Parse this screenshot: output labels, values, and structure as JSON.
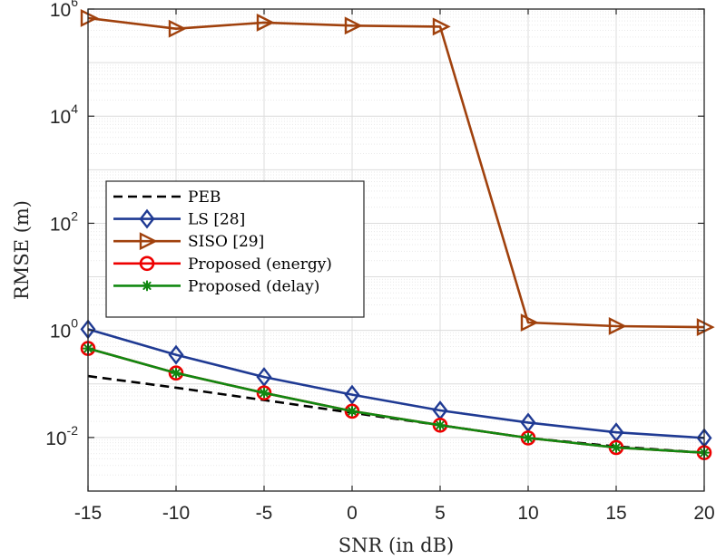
{
  "chart_data": {
    "type": "line",
    "title": "",
    "xlabel": "SNR (in dB)",
    "ylabel": "RMSE (m)",
    "x": [
      -15,
      -10,
      -5,
      0,
      5,
      10,
      15,
      20
    ],
    "xlim": [
      -15,
      20
    ],
    "xticks": [
      -15,
      -10,
      -5,
      0,
      5,
      10,
      15,
      20
    ],
    "yscale": "log",
    "ylim": [
      0.001,
      1000000
    ],
    "yticks": [
      {
        "value": 0.01,
        "base": "10",
        "exp": "-2"
      },
      {
        "value": 1,
        "base": "10",
        "exp": "0"
      },
      {
        "value": 100,
        "base": "10",
        "exp": "2"
      },
      {
        "value": 10000,
        "base": "10",
        "exp": "4"
      },
      {
        "value": 1000000,
        "base": "10",
        "exp": "6"
      }
    ],
    "grid": true,
    "legend_position": "middle-left",
    "series": [
      {
        "name": "PEB",
        "color": "#000000",
        "dash": true,
        "marker": "none",
        "values": [
          0.14,
          0.085,
          0.05,
          0.029,
          0.017,
          0.0098,
          0.0068,
          0.0052
        ]
      },
      {
        "name": "LS [28]",
        "color": "#1f3a93",
        "dash": false,
        "marker": "diamond",
        "values": [
          1.05,
          0.35,
          0.135,
          0.063,
          0.032,
          0.019,
          0.0125,
          0.0098
        ]
      },
      {
        "name": "SISO [29]",
        "color": "#a0410d",
        "dash": false,
        "marker": "triangle-right",
        "values": [
          680000,
          430000,
          560000,
          490000,
          470000,
          1.4,
          1.2,
          1.15
        ]
      },
      {
        "name": "Proposed (energy)",
        "color": "#ee0000",
        "dash": false,
        "marker": "circle",
        "values": [
          0.46,
          0.16,
          0.068,
          0.031,
          0.017,
          0.0098,
          0.0065,
          0.0052
        ]
      },
      {
        "name": "Proposed (delay)",
        "color": "#118811",
        "dash": false,
        "marker": "asterisk",
        "values": [
          0.46,
          0.16,
          0.068,
          0.031,
          0.017,
          0.0098,
          0.0065,
          0.0052
        ]
      }
    ]
  }
}
